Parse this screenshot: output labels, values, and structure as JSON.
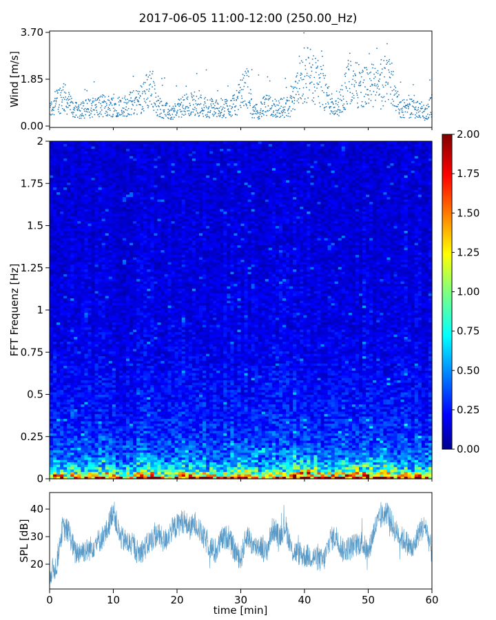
{
  "figure": {
    "title": "2017-06-05 11:00-12:00 (250.00_Hz)"
  },
  "colors": {
    "wind_points": "#1f77b4",
    "spl_line": "#1f77b4",
    "colormap": "jet"
  },
  "chart_data": [
    {
      "type": "scatter",
      "title": "",
      "xlabel": "",
      "ylabel": "Wind [m/s]",
      "xlim": [
        0,
        60
      ],
      "ylim": [
        0.0,
        3.7
      ],
      "x_ticks": [
        0,
        10,
        20,
        30,
        40,
        50,
        60
      ],
      "y_ticks": [
        "0.00",
        "1.85",
        "3.70"
      ],
      "grid": false,
      "series": [
        {
          "x_min": [
            0,
            2,
            4,
            6,
            8,
            10,
            12,
            14,
            16,
            17,
            19,
            21,
            23,
            25,
            27,
            29,
            31,
            32,
            34,
            36,
            38,
            40,
            42,
            44,
            45,
            47,
            49,
            51,
            52,
            53,
            55,
            57,
            59,
            60
          ],
          "y_median_ms": [
            0.6,
            1.2,
            0.6,
            0.7,
            0.8,
            0.8,
            0.8,
            1.0,
            1.6,
            0.8,
            0.5,
            0.8,
            0.9,
            0.7,
            0.7,
            0.8,
            1.6,
            0.5,
            0.8,
            0.7,
            0.8,
            2.1,
            1.8,
            1.0,
            0.6,
            1.8,
            1.5,
            1.6,
            1.3,
            2.2,
            0.7,
            0.7,
            0.5,
            0.8
          ]
        }
      ]
    },
    {
      "type": "heatmap",
      "title": "",
      "xlabel": "",
      "ylabel": "FFT Frequenz [Hz]",
      "xlim": [
        0,
        60
      ],
      "ylim": [
        0,
        2
      ],
      "y_ticks": [
        "0",
        "0.25",
        "0.5",
        "0.75",
        "1",
        "1.25",
        "1.5",
        "1.75",
        "2"
      ],
      "colorbar": {
        "min": 0.0,
        "max": 2.0,
        "ticks": [
          "0.00",
          "0.25",
          "0.50",
          "0.75",
          "1.00",
          "1.25",
          "1.50",
          "1.75",
          "2.00"
        ]
      },
      "frequency_profile_hz": [
        0.0,
        0.02,
        0.05,
        0.1,
        0.15,
        0.25,
        0.4,
        0.55,
        0.75,
        1.0,
        1.5,
        2.0
      ],
      "typical_level": [
        2.0,
        1.3,
        0.85,
        0.6,
        0.45,
        0.35,
        0.28,
        0.26,
        0.22,
        0.2,
        0.18,
        0.17
      ]
    },
    {
      "type": "line",
      "title": "",
      "xlabel": "time [min]",
      "ylabel": "SPL [dB]",
      "xlim": [
        0,
        60
      ],
      "ylim": [
        11,
        46
      ],
      "x_ticks": [
        "0",
        "10",
        "20",
        "30",
        "40",
        "50",
        "60"
      ],
      "y_ticks": [
        "20",
        "30",
        "40"
      ],
      "grid": false,
      "series": [
        {
          "x_min": [
            0,
            1,
            2,
            3,
            4,
            5,
            6,
            7,
            8,
            9,
            10,
            11,
            12,
            13,
            14,
            15,
            16,
            17,
            18,
            19,
            20,
            21,
            22,
            23,
            24,
            25,
            26,
            27,
            28,
            29,
            30,
            31,
            32,
            33,
            34,
            35,
            36,
            37,
            38,
            39,
            40,
            41,
            42,
            43,
            44,
            45,
            46,
            47,
            48,
            49,
            50,
            51,
            52,
            53,
            54,
            55,
            56,
            57,
            58,
            59,
            60
          ],
          "y_db": [
            17,
            19,
            33,
            32,
            24,
            25,
            25,
            27,
            29,
            32,
            40,
            30,
            28,
            27,
            24,
            26,
            29,
            31,
            28,
            32,
            34,
            36,
            33,
            35,
            30,
            27,
            24,
            29,
            30,
            25,
            22,
            31,
            26,
            27,
            24,
            33,
            30,
            34,
            25,
            24,
            23,
            23,
            22,
            21,
            29,
            30,
            25,
            26,
            27,
            28,
            24,
            33,
            37,
            39,
            33,
            30,
            28,
            25,
            32,
            34,
            24
          ]
        }
      ]
    }
  ]
}
